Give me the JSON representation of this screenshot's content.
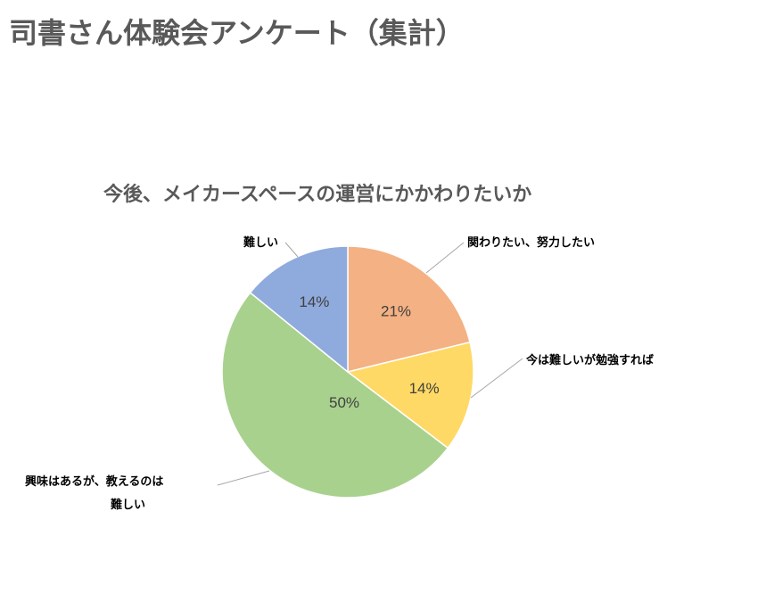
{
  "page": {
    "title": "司書さん体験会アンケート（集計）"
  },
  "chart_data": {
    "type": "pie",
    "title": "今後、メイカースペースの運営にかかわりたいか",
    "categories": [
      "関わりたい、努力したい",
      "今は難しいが勉強すれば",
      "興味はあるが、教えるのは難しい",
      "難しい"
    ],
    "values": [
      21,
      14,
      50,
      14
    ],
    "value_labels": [
      "21%",
      "14%",
      "50%",
      "14%"
    ],
    "colors": [
      "#F4B183",
      "#FFD966",
      "#A9D18E",
      "#8FAADC"
    ],
    "start_angle": "12 o'clock",
    "direction": "clockwise",
    "legend": "none",
    "label_position": "outside-with-leader-lines"
  }
}
